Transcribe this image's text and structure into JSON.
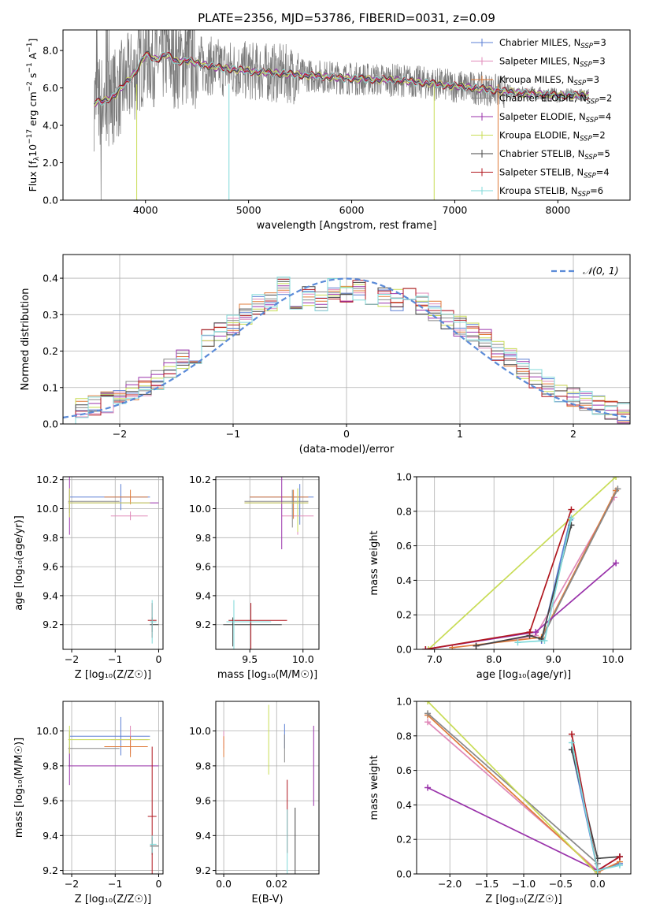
{
  "figure_title": "PLATE=2356, MJD=53786, FIBERID=0031, z=0.09",
  "colors": {
    "Chabrier MILES": "#5b7fd4",
    "Salpeter MILES": "#e089b8",
    "Kroupa MILES": "#e07b3a",
    "Chabrier ELODIE": "#888888",
    "Salpeter ELODIE": "#9932aa",
    "Kroupa ELODIE": "#c8dc55",
    "Chabrier STELIB": "#444444",
    "Salpeter STELIB": "#b0171f",
    "Kroupa STELIB": "#7fd9d9",
    "normal": "#5b8bd8"
  },
  "chart_data": [
    {
      "type": "line",
      "name": "spectrum",
      "title": "PLATE=2356, MJD=53786, FIBERID=0031, z=0.09",
      "xlabel": "wavelength [Angstrom, rest frame]",
      "ylabel": "Flux [f_λ10^-17 erg cm^-2 s^-1 A^-1]",
      "xlim": [
        3200,
        8700
      ],
      "ylim": [
        0,
        9.1
      ],
      "xticks": [
        4000,
        5000,
        6000,
        7000,
        8000
      ],
      "yticks": [
        0,
        2,
        4,
        6,
        8
      ],
      "legend_position": "top-right",
      "legend": [
        {
          "label": "Chabrier MILES, N",
          "sub": "SSP",
          "value": "=3"
        },
        {
          "label": "Salpeter MILES, N",
          "sub": "SSP",
          "value": "=3"
        },
        {
          "label": "Kroupa MILES, N",
          "sub": "SSP",
          "value": "=3"
        },
        {
          "label": "Chabrier ELODIE, N",
          "sub": "SSP",
          "value": "=2"
        },
        {
          "label": "Salpeter ELODIE, N",
          "sub": "SSP",
          "value": "=4"
        },
        {
          "label": "Kroupa ELODIE, N",
          "sub": "SSP",
          "value": "=2"
        },
        {
          "label": "Chabrier STELIB, N",
          "sub": "SSP",
          "value": "=5"
        },
        {
          "label": "Salpeter STELIB, N",
          "sub": "SSP",
          "value": "=4"
        },
        {
          "label": "Kroupa STELIB, N",
          "sub": "SSP",
          "value": "=6"
        }
      ],
      "data_trend": {
        "x": [
          3500,
          3600,
          3700,
          3800,
          3900,
          4000,
          4100,
          4200,
          4300,
          4400,
          4500,
          4700,
          5000,
          5500,
          6000,
          6500,
          7000,
          7200,
          7500,
          8000,
          8300
        ],
        "y": [
          5.2,
          5.3,
          5.6,
          6.2,
          6.8,
          7.8,
          7.5,
          7.8,
          7.4,
          7.5,
          7.3,
          7.1,
          6.9,
          6.7,
          6.5,
          6.4,
          6.1,
          6.0,
          5.8,
          5.6,
          5.6
        ]
      }
    },
    {
      "type": "line",
      "name": "residuals",
      "xlabel": "(data-model)/error",
      "ylabel": "Normed distribution",
      "xlim": [
        -2.5,
        2.5
      ],
      "ylim": [
        0,
        0.465
      ],
      "xticks": [
        -2,
        -1,
        0,
        1,
        2
      ],
      "yticks": [
        0.0,
        0.1,
        0.2,
        0.3,
        0.4
      ],
      "legend": [
        "𝒩(0, 1)"
      ],
      "legend_position": "top-right",
      "hist_base": [
        0.03,
        0.04,
        0.05,
        0.06,
        0.07,
        0.09,
        0.1,
        0.12,
        0.15,
        0.18,
        0.19,
        0.23,
        0.25,
        0.27,
        0.3,
        0.33,
        0.34,
        0.38,
        0.34,
        0.35,
        0.34,
        0.37,
        0.36,
        0.37,
        0.34,
        0.35,
        0.34,
        0.36,
        0.33,
        0.31,
        0.29,
        0.27,
        0.25,
        0.23,
        0.2,
        0.18,
        0.15,
        0.12,
        0.1,
        0.09,
        0.07,
        0.06,
        0.05,
        0.04,
        0.03
      ]
    },
    {
      "type": "scatter",
      "name": "age_vs_Z",
      "xlabel": "Z [log10(Z/Z☉)]",
      "ylabel": "age  [log10(age/yr)]",
      "xlim": [
        -2.2,
        0.1
      ],
      "ylim": [
        9.03,
        10.22
      ],
      "xticks": [
        -2,
        -1,
        0
      ],
      "yticks": [
        9.2,
        9.4,
        9.6,
        9.8,
        10.0,
        10.2
      ]
    },
    {
      "type": "scatter",
      "name": "age_vs_mass",
      "xlabel": "mass [log10(M/M☉)]",
      "ylabel": "",
      "xlim": [
        9.18,
        10.15
      ],
      "ylim": [
        9.03,
        10.22
      ],
      "xticks": [
        9.5,
        10.0
      ],
      "yticks": [
        9.2,
        9.4,
        9.6,
        9.8,
        10.0,
        10.2
      ]
    },
    {
      "type": "line",
      "name": "weight_vs_age",
      "xlabel": "age  [log10(age/yr)]",
      "ylabel": "mass weight",
      "xlim": [
        6.7,
        10.3
      ],
      "ylim": [
        0,
        1.0
      ],
      "xticks": [
        7,
        8,
        9,
        10
      ],
      "yticks": [
        0.0,
        0.2,
        0.4,
        0.6,
        0.8,
        1.0
      ]
    },
    {
      "type": "scatter",
      "name": "mass_vs_Z",
      "xlabel": "Z [log10(Z/Z☉)]",
      "ylabel": "mass [log10(M/M☉)]",
      "xlim": [
        -2.2,
        0.1
      ],
      "ylim": [
        9.18,
        10.17
      ],
      "xticks": [
        -2,
        -1,
        0
      ],
      "yticks": [
        9.2,
        9.4,
        9.6,
        9.8,
        10.0
      ]
    },
    {
      "type": "scatter",
      "name": "mass_vs_ebv",
      "xlabel": "E(B-V)",
      "ylabel": "",
      "xlim": [
        -0.003,
        0.036
      ],
      "ylim": [
        9.18,
        10.17
      ],
      "xticks": [
        0.0,
        0.02
      ],
      "yticks": [
        9.2,
        9.4,
        9.6,
        9.8,
        10.0
      ]
    },
    {
      "type": "line",
      "name": "weight_vs_Z",
      "xlabel": "Z [log10(Z/Z☉)]",
      "ylabel": "mass weight",
      "xlim": [
        -2.45,
        0.45
      ],
      "ylim": [
        0,
        1.0
      ],
      "xticks": [
        -2.0,
        -1.5,
        -1.0,
        -0.5,
        0.0
      ],
      "yticks": [
        0.0,
        0.2,
        0.4,
        0.6,
        0.8,
        1.0
      ]
    }
  ],
  "models": [
    {
      "name": "Chabrier MILES",
      "age": 10.08,
      "age_err": 0.09,
      "mass": 9.97,
      "mass_err": 0.11,
      "mass_ext": [
        9.5,
        10.1
      ],
      "Z": -0.87,
      "Z_ext": [
        -2.05,
        -0.2
      ],
      "Z_err": 0.05,
      "ebv": 0.023,
      "ebv_err": 0.07,
      "weights_age": [
        [
          8.8,
          0.05
        ],
        [
          9.28,
          0.75
        ]
      ],
      "weights_Z": [
        [
          -0.35,
          0.72
        ],
        [
          0.0,
          0.02
        ],
        [
          0.3,
          0.06
        ]
      ]
    },
    {
      "name": "Salpeter MILES",
      "age": 9.95,
      "age_err": 0.03,
      "mass": 9.95,
      "mass_err": 0.08,
      "mass_ext": [
        9.8,
        10.1
      ],
      "Z": -0.65,
      "Z_ext": [
        -1.1,
        -0.25
      ],
      "Z_err": 0.15,
      "ebv": 0.0,
      "ebv_err": 0.05,
      "weights_age": [
        [
          7.7,
          0.02
        ],
        [
          8.7,
          0.08
        ],
        [
          10.02,
          0.88
        ]
      ],
      "weights_Z": [
        [
          -2.3,
          0.88
        ],
        [
          0.0,
          0.02
        ],
        [
          0.3,
          0.1
        ]
      ]
    },
    {
      "name": "Kroupa MILES",
      "age": 10.08,
      "age_err": 0.05,
      "mass": 9.91,
      "mass_err": 0.06,
      "mass_ext": [
        9.5,
        10.05
      ],
      "Z": -0.65,
      "Z_ext": [
        -1.25,
        -0.25
      ],
      "Z_err": 0.04,
      "ebv": 0.0,
      "ebv_err": 0.06,
      "weights_age": [
        [
          7.3,
          0.01
        ],
        [
          8.8,
          0.07
        ],
        [
          10.05,
          0.92
        ]
      ],
      "weights_Z": [
        [
          -2.3,
          0.92
        ],
        [
          0.0,
          0.01
        ],
        [
          0.3,
          0.07
        ]
      ]
    },
    {
      "name": "Chabrier ELODIE",
      "age": 10.05,
      "age_err": 0.08,
      "mass": 9.9,
      "mass_err": 0.1,
      "mass_ext": [
        9.45,
        10.05
      ],
      "Z": -2.05,
      "Z_ext": [
        -2.08,
        -0.9
      ],
      "Z_err": 0.1,
      "ebv": 0.023,
      "ebv_err": 0.08,
      "weights_age": [
        [
          8.8,
          0.06
        ],
        [
          10.08,
          0.93
        ]
      ],
      "weights_Z": [
        [
          -2.3,
          0.93
        ],
        [
          0.0,
          0.06
        ]
      ]
    },
    {
      "name": "Salpeter ELODIE",
      "age": 10.04,
      "age_err": 0.22,
      "mass": 9.8,
      "mass_err": 0.11,
      "mass_ext": [
        9.45,
        10.05
      ],
      "Z": -2.05,
      "Z_ext": [
        -2.08,
        0.0
      ],
      "Z_err": 0.12,
      "ebv": 0.034,
      "ebv_err": 0.23,
      "weights_age": [
        [
          6.85,
          0.0
        ],
        [
          8.7,
          0.1
        ],
        [
          10.05,
          0.5
        ]
      ],
      "weights_Z": [
        [
          -2.3,
          0.5
        ],
        [
          0.0,
          0.02
        ],
        [
          0.3,
          0.1
        ]
      ]
    },
    {
      "name": "Kroupa ELODIE",
      "age": 10.04,
      "age_err": 0.1,
      "mass": 9.95,
      "mass_err": 0.08,
      "mass_ext": [
        9.45,
        10.05
      ],
      "Z": -2.05,
      "Z_ext": [
        -2.08,
        -0.2
      ],
      "Z_err": 0.38,
      "ebv": 0.017,
      "ebv_err": 0.2,
      "weights_age": [
        [
          6.9,
          0.0
        ],
        [
          10.05,
          1.0
        ]
      ],
      "weights_Z": [
        [
          -2.3,
          1.0
        ],
        [
          0.0,
          0.0
        ]
      ]
    },
    {
      "name": "Chabrier STELIB",
      "age": 9.2,
      "age_err": 0.05,
      "mass": 9.34,
      "mass_err": 0.05,
      "mass_ext": [
        9.25,
        9.8
      ],
      "Z": -0.15,
      "Z_ext": [
        -0.2,
        0.0
      ],
      "Z_err": 0.12,
      "ebv": 0.027,
      "ebv_err": 0.22,
      "weights_age": [
        [
          7.7,
          0.02
        ],
        [
          8.6,
          0.08
        ],
        [
          8.8,
          0.06
        ],
        [
          9.3,
          0.72
        ]
      ],
      "weights_Z": [
        [
          -0.35,
          0.72
        ],
        [
          0.0,
          0.09
        ],
        [
          0.3,
          0.1
        ]
      ]
    },
    {
      "name": "Salpeter STELIB",
      "age": 9.23,
      "age_err": 0.12,
      "mass": 9.51,
      "mass_err": 0.4,
      "mass_ext": [
        9.3,
        9.85
      ],
      "Z": -0.15,
      "Z_ext": [
        -0.25,
        -0.05
      ],
      "Z_err": 0.26,
      "ebv": 0.024,
      "ebv_err": 0.21,
      "weights_age": [
        [
          6.85,
          0.0
        ],
        [
          8.6,
          0.1
        ],
        [
          9.3,
          0.81
        ]
      ],
      "weights_Z": [
        [
          -0.35,
          0.81
        ],
        [
          0.0,
          0.02
        ],
        [
          0.3,
          0.1
        ]
      ]
    },
    {
      "name": "Kroupa STELIB",
      "age": 9.22,
      "age_err": 0.15,
      "mass": 9.35,
      "mass_err": 0.05,
      "mass_ext": [
        9.28,
        9.7
      ],
      "Z": -0.15,
      "Z_ext": [
        -0.2,
        -0.05
      ],
      "Z_err": 0.05,
      "ebv": 0.024,
      "ebv_err": 0.2,
      "weights_age": [
        [
          8.4,
          0.04
        ],
        [
          8.85,
          0.05
        ],
        [
          9.3,
          0.76
        ]
      ],
      "weights_Z": [
        [
          -0.35,
          0.76
        ],
        [
          0.0,
          0.02
        ],
        [
          0.3,
          0.05
        ]
      ]
    }
  ]
}
